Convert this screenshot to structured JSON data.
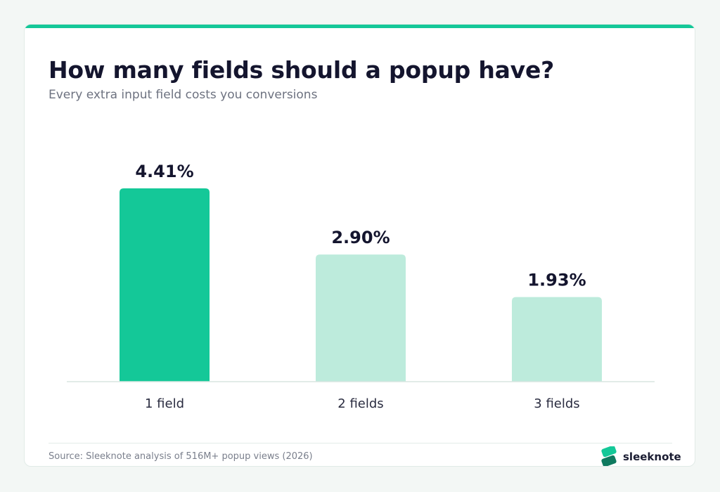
{
  "title": "How many fields should a popup have?",
  "subtitle": "Every extra input field costs you conversions",
  "source": "Source: Sleeknote analysis of 516M+ popup views (2026)",
  "brand": {
    "name": "sleeknote",
    "logo_icon": "sleeknote-logo-icon"
  },
  "colors": {
    "accent": "#14c898",
    "highlight_bar": "#14c898",
    "muted_bar": "#bdebdc",
    "value_label": "#14152e",
    "category_label": "#2a2c40",
    "baseline": "#d8e6e1"
  },
  "chart_data": {
    "type": "bar",
    "categories": [
      "1 field",
      "2 fields",
      "3 fields"
    ],
    "values": [
      4.41,
      2.9,
      1.93
    ],
    "value_labels": [
      "4.41%",
      "2.90%",
      "1.93%"
    ],
    "highlighted_index": 0,
    "title": "How many fields should a popup have?",
    "xlabel": "",
    "ylabel": "",
    "grid": false,
    "legend": "none"
  }
}
